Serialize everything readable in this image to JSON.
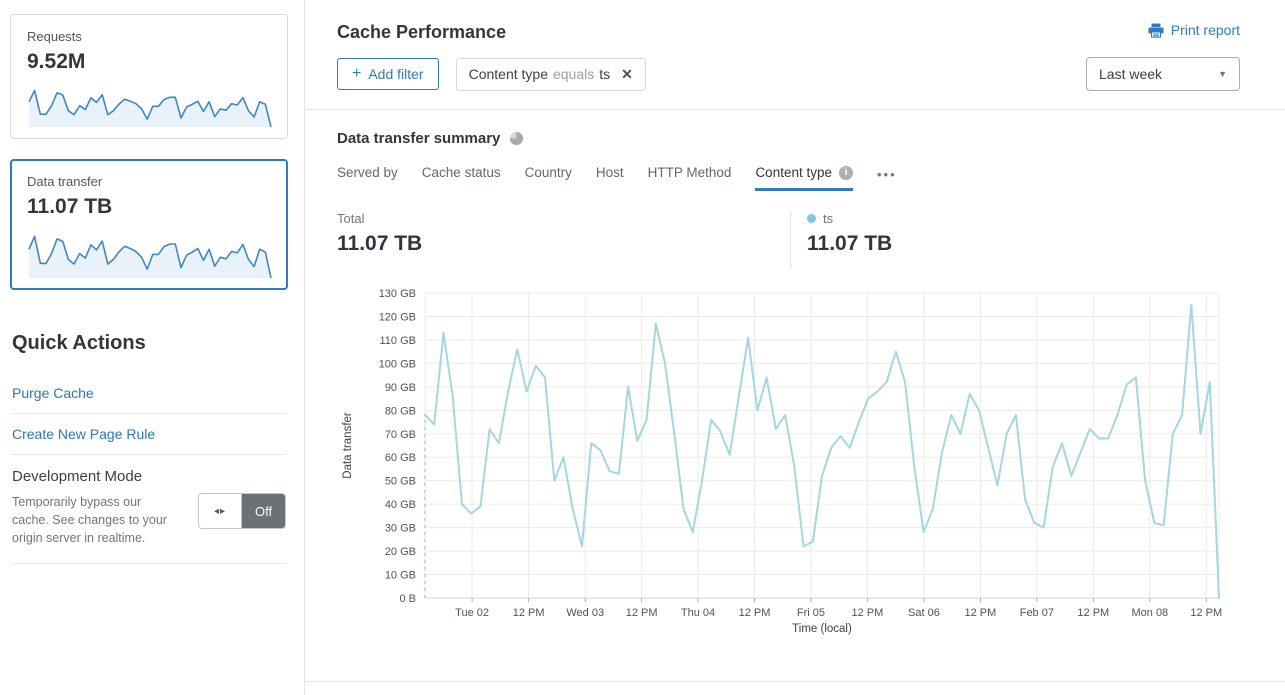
{
  "sidebar": {
    "requests_card": {
      "label": "Requests",
      "value": "9.52M"
    },
    "data_transfer_card": {
      "label": "Data transfer",
      "value": "11.07 TB"
    },
    "quick_actions": {
      "title": "Quick Actions",
      "links": [
        "Purge Cache",
        "Create New Page Rule"
      ],
      "development_mode": {
        "title": "Development Mode",
        "description": "Temporarily bypass our cache. See changes to your origin server in realtime.",
        "toggle_state": "Off",
        "toggle_arrows": "◂▸"
      }
    }
  },
  "header": {
    "title": "Cache Performance",
    "print_label": "Print report"
  },
  "filters": {
    "add_filter_plus": "+",
    "add_filter_label": "Add filter",
    "chip": {
      "field": "Content type",
      "operator": "equals",
      "value": "ts",
      "close_glyph": "✕"
    },
    "time_range": "Last week",
    "caret_glyph": "▼"
  },
  "summary": {
    "title": "Data transfer summary",
    "tabs": [
      {
        "label": "Served by",
        "active": false
      },
      {
        "label": "Cache status",
        "active": false
      },
      {
        "label": "Country",
        "active": false
      },
      {
        "label": "Host",
        "active": false
      },
      {
        "label": "HTTP Method",
        "active": false
      },
      {
        "label": "Content type",
        "active": true,
        "has_info": true,
        "info_glyph": "i"
      }
    ],
    "more_label": "•••",
    "total": {
      "label": "Total",
      "value": "11.07 TB"
    },
    "legend": [
      {
        "label": "ts",
        "value": "11.07 TB",
        "color": "#7fc9d8"
      }
    ]
  },
  "colors": {
    "accent_blue": "#2f7bbf",
    "spark_line": "#3e87c2",
    "spark_fill": "#eaf2f9",
    "chart_line": "#a3d7e1",
    "grid": "#ebebeb",
    "axis_text": "#4d5458"
  },
  "chart_data": [
    {
      "name": "data-transfer-by-content-type",
      "type": "line",
      "series": [
        {
          "name": "ts",
          "unit": "GB",
          "values": [
            78,
            74,
            113,
            86,
            40,
            36,
            39,
            72,
            66,
            88,
            106,
            88,
            99,
            94,
            50,
            60,
            38,
            22,
            66,
            63,
            54,
            53,
            90,
            67,
            76,
            117,
            100,
            70,
            38,
            28,
            50,
            76,
            71,
            61,
            86,
            111,
            80,
            94,
            72,
            78,
            56,
            22,
            24,
            52,
            64,
            69,
            64,
            75,
            85,
            88,
            92,
            105,
            92,
            56,
            28,
            38,
            62,
            78,
            70,
            87,
            80,
            64,
            48,
            70,
            78,
            42,
            32,
            30,
            56,
            66,
            52,
            62,
            72,
            68,
            68,
            78,
            91,
            94,
            50,
            32,
            31,
            70,
            78,
            125,
            70,
            92,
            0
          ]
        }
      ],
      "leading_dashed_from_zero": true,
      "xlabel": "Time (local)",
      "ylabel": "Data transfer",
      "ylim": [
        0,
        130
      ],
      "y_ticks": [
        "0 B",
        "10 GB",
        "20 GB",
        "30 GB",
        "40 GB",
        "50 GB",
        "60 GB",
        "70 GB",
        "80 GB",
        "90 GB",
        "100 GB",
        "110 GB",
        "120 GB",
        "130 GB"
      ],
      "x_ticks": [
        {
          "label": "Tue 02",
          "f": 0.0593
        },
        {
          "label": "12 PM",
          "f": 0.1305
        },
        {
          "label": "Wed 03",
          "f": 0.2018
        },
        {
          "label": "12 PM",
          "f": 0.2728
        },
        {
          "label": "Thu 04",
          "f": 0.3439
        },
        {
          "label": "12 PM",
          "f": 0.415
        },
        {
          "label": "Fri 05",
          "f": 0.4861
        },
        {
          "label": "12 PM",
          "f": 0.5572
        },
        {
          "label": "Sat 06",
          "f": 0.6284
        },
        {
          "label": "12 PM",
          "f": 0.6995
        },
        {
          "label": "Feb 07",
          "f": 0.7706
        },
        {
          "label": "12 PM",
          "f": 0.8417
        },
        {
          "label": "Mon 08",
          "f": 0.9129
        },
        {
          "label": "12 PM",
          "f": 0.984
        }
      ],
      "grid": true,
      "legend_position": "above-right"
    },
    {
      "name": "requests-sparkline",
      "type": "line",
      "title": "Requests",
      "values": [
        78,
        113,
        40,
        39,
        66,
        106,
        99,
        50,
        38,
        66,
        54,
        90,
        76,
        100,
        38,
        50,
        71,
        86,
        80,
        72,
        56,
        24,
        64,
        64,
        85,
        92,
        92,
        28,
        62,
        70,
        80,
        48,
        78,
        32,
        56,
        52,
        72,
        68,
        91,
        50,
        31,
        78,
        70,
        0
      ]
    },
    {
      "name": "data-transfer-sparkline",
      "type": "line",
      "title": "Data transfer",
      "values": [
        78,
        113,
        40,
        39,
        66,
        106,
        99,
        50,
        38,
        66,
        54,
        90,
        76,
        100,
        38,
        50,
        71,
        86,
        80,
        72,
        56,
        24,
        64,
        64,
        85,
        92,
        92,
        28,
        62,
        70,
        80,
        48,
        78,
        32,
        56,
        52,
        72,
        68,
        91,
        50,
        31,
        78,
        70,
        0
      ]
    }
  ]
}
